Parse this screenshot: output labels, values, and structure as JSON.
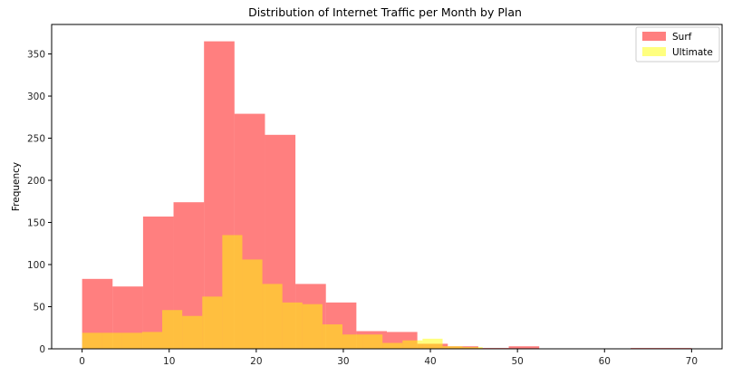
{
  "chart_data": {
    "type": "histogram",
    "title": "Distribution of Internet Traffic per Month by Plan",
    "xlabel": "",
    "ylabel": "Frequency",
    "xlim": [
      -3.5,
      73.5
    ],
    "ylim": [
      0,
      385
    ],
    "xticks": [
      0,
      10,
      20,
      30,
      40,
      50,
      60,
      70
    ],
    "yticks": [
      0,
      50,
      100,
      150,
      200,
      250,
      300,
      350
    ],
    "grid": false,
    "legend_position": "top-right",
    "series": [
      {
        "name": "Surf",
        "color": "#ff0000",
        "alpha": 0.5,
        "bin_edges": [
          0,
          3.5,
          7,
          10.5,
          14,
          17.5,
          21,
          24.5,
          28,
          31.5,
          35,
          38.5,
          42,
          45.5,
          49,
          52.5,
          56,
          59.5,
          63,
          66.5,
          70
        ],
        "counts": [
          83,
          74,
          157,
          174,
          365,
          279,
          254,
          77,
          55,
          21,
          20,
          6,
          3,
          1,
          3,
          0,
          0,
          0,
          1,
          1
        ]
      },
      {
        "name": "Ultimate",
        "color": "#ffff00",
        "alpha": 0.5,
        "bin_edges": [
          0,
          2.3,
          4.6,
          6.9,
          9.2,
          11.5,
          13.8,
          16.1,
          18.4,
          20.7,
          23.0,
          25.3,
          27.6,
          29.9,
          32.2,
          34.5,
          36.8,
          39.1,
          41.4,
          43.7,
          46.0
        ],
        "counts": [
          19,
          19,
          19,
          20,
          46,
          39,
          62,
          135,
          106,
          77,
          55,
          53,
          29,
          17,
          17,
          7,
          10,
          12,
          3,
          2
        ]
      }
    ]
  }
}
